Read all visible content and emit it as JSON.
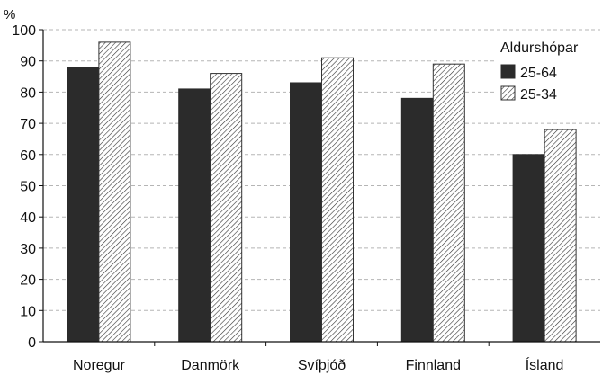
{
  "chart_data": {
    "type": "bar",
    "categories": [
      "Noregur",
      "Danmörk",
      "Svíþjóð",
      "Finnland",
      "Ísland"
    ],
    "series": [
      {
        "name": "25-64",
        "values": [
          88,
          81,
          83,
          78,
          60
        ],
        "color": "#2b2b2b",
        "fill": "solid"
      },
      {
        "name": "25-34",
        "values": [
          96,
          86,
          91,
          89,
          68
        ],
        "color": "#ffffff",
        "fill": "hatched"
      }
    ],
    "unit_label": "%",
    "ylim": [
      0,
      100
    ],
    "yticks": [
      "0",
      "10",
      "20",
      "30",
      "40",
      "50",
      "60",
      "70",
      "80",
      "90",
      "100"
    ],
    "grid": "horizontal-dashed",
    "legend": {
      "title": "Aldurshópar",
      "placement": "top-right"
    }
  }
}
